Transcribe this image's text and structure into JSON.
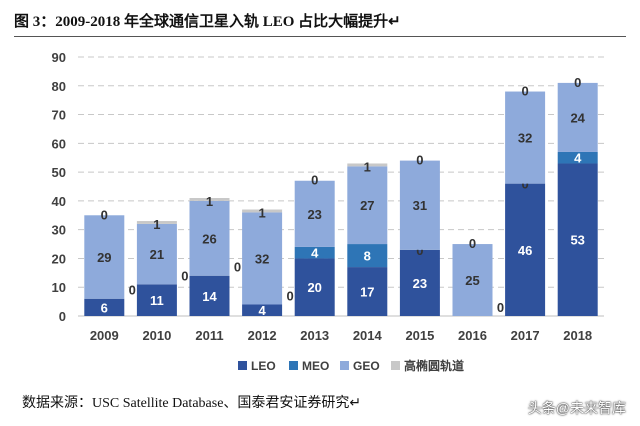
{
  "title": "图 3：2009-2018 年全球通信卫星入轨 LEO 占比大幅提升↵",
  "source": "数据来源：USC Satellite Database、国泰君安证券研究↵",
  "watermark": "头条@未来智库",
  "chart_data": {
    "type": "bar",
    "stacked": true,
    "title": "图 3：2009-2018 年全球通信卫星入轨 LEO 占比大幅提升",
    "categories": [
      "2009",
      "2010",
      "2011",
      "2012",
      "2013",
      "2014",
      "2015",
      "2016",
      "2017",
      "2018"
    ],
    "ylim": [
      0,
      90
    ],
    "yticks": [
      0,
      10,
      20,
      30,
      40,
      50,
      60,
      70,
      80,
      90
    ],
    "grid": true,
    "legend": "bottom",
    "series": [
      {
        "name": "LEO",
        "color": "#2f529c",
        "values": [
          6,
          11,
          14,
          4,
          20,
          17,
          23,
          0,
          46,
          53
        ]
      },
      {
        "name": "MEO",
        "color": "#2e75b6",
        "values": [
          0,
          0,
          0,
          0,
          4,
          8,
          0,
          0,
          0,
          4
        ]
      },
      {
        "name": "GEO",
        "color": "#8eaadb",
        "values": [
          29,
          21,
          26,
          32,
          23,
          27,
          31,
          25,
          32,
          24
        ]
      },
      {
        "name": "高椭圆轨道",
        "color": "#c8c8c8",
        "values": [
          0,
          1,
          1,
          1,
          0,
          1,
          0,
          0,
          0,
          0
        ]
      }
    ]
  }
}
